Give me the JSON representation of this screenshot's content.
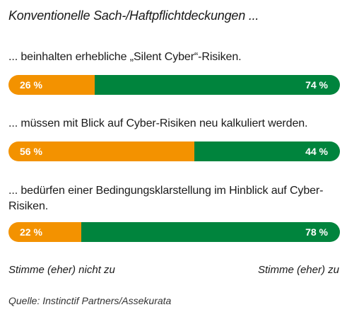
{
  "chart_data": {
    "type": "bar",
    "orientation": "horizontal",
    "stacked": true,
    "title": "Konventionelle Sach-/Haftpflichtdeckungen ...",
    "categories": [
      "... beinhalten erhebliche „Silent Cyber“-Risiken.",
      "... müssen mit Blick auf Cyber-Risiken neu kalkuliert werden.",
      "... bedürfen einer Bedingungsklarstellung im Hinblick auf Cyber-Risiken."
    ],
    "series": [
      {
        "name": "Stimme (eher) nicht zu",
        "color": "#f39200",
        "values": [
          26,
          56,
          22
        ],
        "labels": [
          "26 %",
          "56 %",
          "22 %"
        ]
      },
      {
        "name": "Stimme (eher) zu",
        "color": "#00843d",
        "values": [
          74,
          44,
          78
        ],
        "labels": [
          "74 %",
          "44 %",
          "78 %"
        ]
      }
    ],
    "xlim": [
      0,
      100
    ],
    "unit": "%",
    "legend": {
      "left": "Stimme (eher) nicht zu",
      "right": "Stimme (eher) zu"
    }
  },
  "source": {
    "key": "Quelle:",
    "value": "Instinctif Partners/Assekurata"
  },
  "colors": {
    "orange": "#f39200",
    "green": "#00843d"
  }
}
